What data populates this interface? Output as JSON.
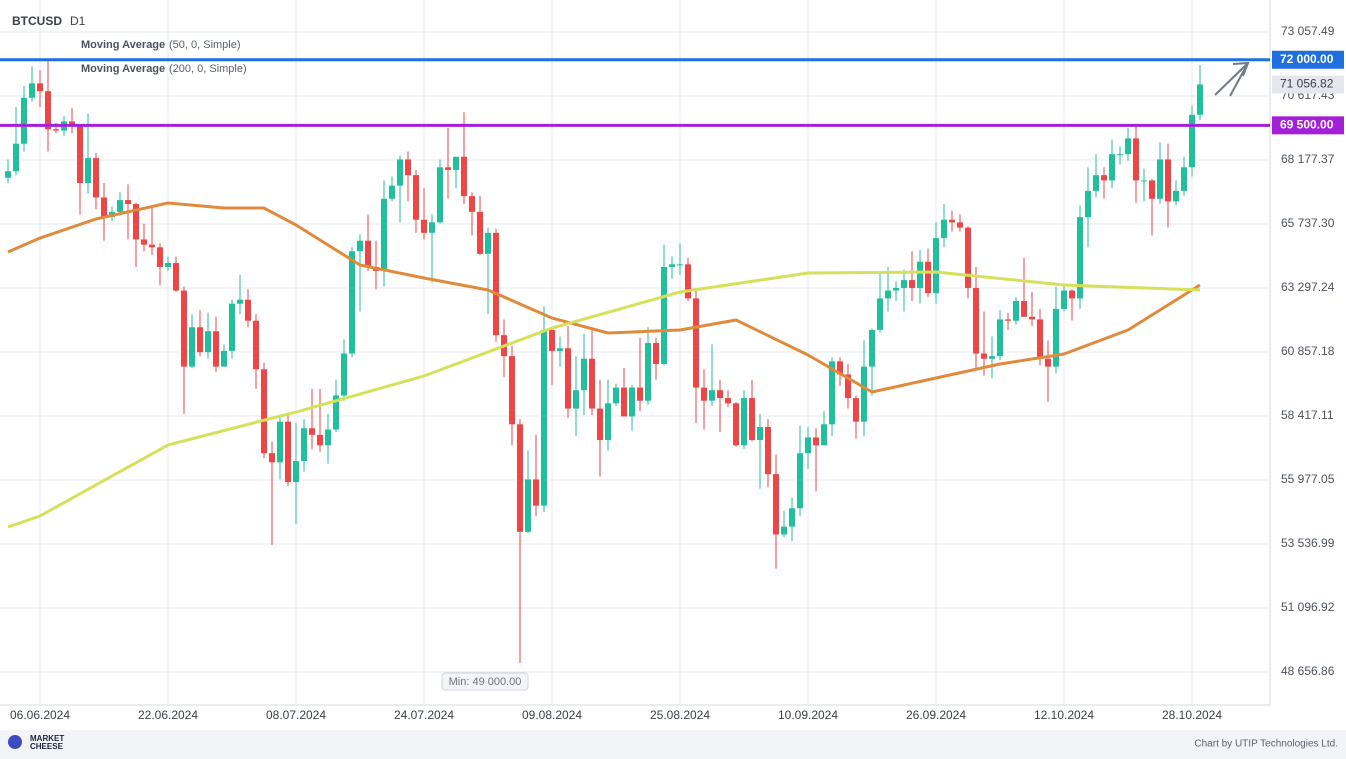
{
  "chart_data": {
    "type": "candlestick",
    "title": "BTCUSD",
    "timeframe": "D1",
    "x": [
      "02.06.2024",
      "03.06.2024",
      "04.06.2024",
      "05.06.2024",
      "06.06.2024",
      "07.06.2024",
      "08.06.2024",
      "09.06.2024",
      "10.06.2024",
      "11.06.2024",
      "12.06.2024",
      "13.06.2024",
      "14.06.2024",
      "15.06.2024",
      "16.06.2024",
      "17.06.2024",
      "18.06.2024",
      "19.06.2024",
      "20.06.2024",
      "21.06.2024",
      "22.06.2024",
      "23.06.2024",
      "24.06.2024",
      "25.06.2024",
      "26.06.2024",
      "27.06.2024",
      "28.06.2024",
      "29.06.2024",
      "30.06.2024",
      "01.07.2024",
      "02.07.2024",
      "03.07.2024",
      "04.07.2024",
      "05.07.2024",
      "06.07.2024",
      "07.07.2024",
      "08.07.2024",
      "09.07.2024",
      "10.07.2024",
      "11.07.2024",
      "12.07.2024",
      "13.07.2024",
      "14.07.2024",
      "15.07.2024",
      "16.07.2024",
      "17.07.2024",
      "18.07.2024",
      "19.07.2024",
      "20.07.2024",
      "21.07.2024",
      "22.07.2024",
      "23.07.2024",
      "24.07.2024",
      "25.07.2024",
      "26.07.2024",
      "27.07.2024",
      "28.07.2024",
      "29.07.2024",
      "30.07.2024",
      "31.07.2024",
      "01.08.2024",
      "02.08.2024",
      "03.08.2024",
      "04.08.2024",
      "05.08.2024",
      "06.08.2024",
      "07.08.2024",
      "08.08.2024",
      "09.08.2024",
      "10.08.2024",
      "11.08.2024",
      "12.08.2024",
      "13.08.2024",
      "14.08.2024",
      "15.08.2024",
      "16.08.2024",
      "17.08.2024",
      "18.08.2024",
      "19.08.2024",
      "20.08.2024",
      "21.08.2024",
      "22.08.2024",
      "23.08.2024",
      "24.08.2024",
      "25.08.2024",
      "26.08.2024",
      "27.08.2024",
      "28.08.2024",
      "29.08.2024",
      "30.08.2024",
      "31.08.2024",
      "01.09.2024",
      "02.09.2024",
      "03.09.2024",
      "04.09.2024",
      "05.09.2024",
      "06.09.2024",
      "07.09.2024",
      "08.09.2024",
      "09.09.2024",
      "10.09.2024",
      "11.09.2024",
      "12.09.2024",
      "13.09.2024",
      "14.09.2024",
      "15.09.2024",
      "16.09.2024",
      "17.09.2024",
      "18.09.2024",
      "19.09.2024",
      "20.09.2024",
      "21.09.2024",
      "22.09.2024",
      "23.09.2024",
      "24.09.2024",
      "25.09.2024",
      "26.09.2024",
      "27.09.2024",
      "28.09.2024",
      "29.09.2024",
      "30.09.2024",
      "01.10.2024",
      "02.10.2024",
      "03.10.2024",
      "04.10.2024",
      "05.10.2024",
      "06.10.2024",
      "07.10.2024",
      "08.10.2024",
      "09.10.2024",
      "10.10.2024",
      "11.10.2024",
      "12.10.2024",
      "13.10.2024",
      "14.10.2024",
      "15.10.2024",
      "16.10.2024",
      "17.10.2024",
      "18.10.2024",
      "19.10.2024",
      "20.10.2024",
      "21.10.2024",
      "22.10.2024",
      "23.10.2024",
      "24.10.2024",
      "25.10.2024",
      "26.10.2024",
      "27.10.2024",
      "28.10.2024",
      "29.10.2024"
    ],
    "open": [
      67500,
      67750,
      68800,
      70550,
      71100,
      70800,
      69350,
      69300,
      69650,
      69500,
      67300,
      68250,
      66750,
      66000,
      66200,
      66650,
      66500,
      65150,
      64950,
      64850,
      64100,
      64250,
      63200,
      60300,
      61800,
      60850,
      61650,
      60300,
      60900,
      62700,
      62850,
      62050,
      60200,
      57000,
      56650,
      58200,
      55900,
      56700,
      57950,
      57700,
      57300,
      57900,
      59200,
      60800,
      64700,
      65100,
      64100,
      63950,
      66700,
      67200,
      68200,
      67600,
      65900,
      65400,
      65800,
      67900,
      67800,
      68300,
      66800,
      66200,
      64600,
      65400,
      61500,
      60700,
      58100,
      54000,
      56000,
      55000,
      61700,
      60900,
      61000,
      58700,
      59400,
      60600,
      58700,
      57500,
      58900,
      59500,
      58400,
      59500,
      59000,
      61200,
      60400,
      64100,
      64200,
      64200,
      62900,
      59500,
      59000,
      59400,
      59100,
      58900,
      57300,
      59100,
      57500,
      58000,
      56200,
      53900,
      54200,
      54900,
      57000,
      57600,
      57300,
      58100,
      60500,
      60000,
      59100,
      58200,
      60300,
      61700,
      62900,
      63200,
      63300,
      63600,
      63300,
      64300,
      63100,
      65200,
      65900,
      65800,
      65600,
      63300,
      60800,
      60600,
      60700,
      62100,
      62050,
      62800,
      62200,
      62100,
      60600,
      60300,
      62500,
      63200,
      62900,
      66000,
      67000,
      67600,
      67400,
      68400,
      68400,
      69000,
      67400,
      67400,
      66700,
      68200,
      66600,
      67000,
      67900,
      69900
    ],
    "high": [
      68200,
      70200,
      71000,
      71750,
      71600,
      71950,
      69600,
      69850,
      70150,
      69550,
      69950,
      68450,
      67300,
      66400,
      66950,
      67250,
      66550,
      65750,
      66450,
      65000,
      64500,
      64500,
      63350,
      62300,
      62450,
      62350,
      62200,
      61150,
      62850,
      63800,
      63250,
      62300,
      60450,
      57450,
      58450,
      58500,
      58150,
      58300,
      59450,
      59450,
      58500,
      59800,
      61350,
      64850,
      65350,
      66100,
      65100,
      67400,
      67550,
      68350,
      68500,
      67800,
      67100,
      66100,
      68200,
      69400,
      68300,
      70000,
      66950,
      66800,
      65600,
      65550,
      62100,
      61100,
      58300,
      57100,
      57700,
      62600,
      61750,
      61450,
      61850,
      60700,
      61550,
      61800,
      59800,
      59800,
      59650,
      60250,
      59600,
      61400,
      61800,
      61400,
      64950,
      64500,
      65000,
      64450,
      63200,
      60200,
      61150,
      59800,
      59400,
      58950,
      59400,
      59800,
      58500,
      58300,
      56950,
      54800,
      55300,
      58050,
      58000,
      57950,
      58600,
      60650,
      60650,
      60400,
      59200,
      61300,
      61750,
      63850,
      64100,
      63550,
      64000,
      64700,
      64750,
      64800,
      65800,
      66500,
      66250,
      66100,
      65650,
      64100,
      62400,
      61450,
      62450,
      62350,
      62950,
      64450,
      63150,
      62500,
      61300,
      63350,
      63450,
      63250,
      66450,
      67900,
      68400,
      67900,
      68950,
      68700,
      69400,
      69500,
      67850,
      67450,
      68850,
      68800,
      67400,
      68300,
      70250,
      71800
    ],
    "low": [
      67300,
      67600,
      68500,
      70400,
      70200,
      68500,
      69200,
      69100,
      69200,
      66100,
      66900,
      66300,
      65100,
      65850,
      66050,
      65150,
      64100,
      64700,
      64550,
      63400,
      63950,
      63150,
      58500,
      60250,
      60700,
      60600,
      60100,
      60300,
      60600,
      62300,
      61800,
      59450,
      56800,
      53500,
      56000,
      55750,
      54300,
      56300,
      57150,
      57050,
      56600,
      57800,
      59000,
      60650,
      62400,
      63950,
      63250,
      63350,
      66600,
      65800,
      66600,
      65400,
      65150,
      63500,
      65750,
      66700,
      67100,
      66500,
      65300,
      64550,
      62300,
      61250,
      59900,
      57300,
      49000,
      53950,
      54600,
      54750,
      59600,
      60300,
      58350,
      57650,
      58450,
      58450,
      56100,
      57100,
      58800,
      58400,
      57850,
      58600,
      58850,
      59800,
      60350,
      63650,
      63800,
      62800,
      58150,
      57900,
      58800,
      57800,
      58750,
      57250,
      57150,
      57450,
      55650,
      55700,
      52600,
      53800,
      53650,
      54600,
      56400,
      55550,
      57300,
      57650,
      59550,
      58700,
      57550,
      57650,
      59200,
      61600,
      62400,
      62800,
      62400,
      62800,
      62700,
      62950,
      62700,
      64850,
      65450,
      65450,
      62900,
      60200,
      59950,
      59850,
      60550,
      61700,
      61900,
      62200,
      61850,
      60350,
      58950,
      60050,
      62400,
      62050,
      62500,
      64850,
      66750,
      66700,
      67100,
      68000,
      68150,
      66550,
      66600,
      65300,
      66500,
      65600,
      66450,
      66800,
      67550,
      69700
    ],
    "close": [
      67750,
      68800,
      70550,
      71100,
      70800,
      69350,
      69300,
      69650,
      69500,
      67300,
      68250,
      66750,
      66000,
      66200,
      66650,
      66500,
      65150,
      64950,
      64850,
      64100,
      64250,
      63200,
      60300,
      61800,
      60850,
      61650,
      60300,
      60900,
      62700,
      62850,
      62050,
      60200,
      57000,
      56650,
      58200,
      55900,
      56700,
      57950,
      57700,
      57300,
      57900,
      59200,
      60800,
      64700,
      65100,
      64100,
      63950,
      66700,
      67200,
      68200,
      67600,
      65900,
      65400,
      65800,
      67900,
      67800,
      68300,
      66800,
      66200,
      64600,
      65400,
      61500,
      60700,
      58100,
      54000,
      56000,
      55000,
      61700,
      60900,
      61000,
      58700,
      59400,
      60600,
      58700,
      57500,
      58900,
      59500,
      58400,
      59500,
      59000,
      61200,
      60400,
      64100,
      64200,
      64200,
      62900,
      59500,
      59000,
      59400,
      59100,
      58900,
      57300,
      59100,
      57500,
      58000,
      56200,
      53900,
      54200,
      54900,
      57000,
      57600,
      57300,
      58100,
      60500,
      60000,
      59100,
      58200,
      60300,
      61700,
      62900,
      63200,
      63300,
      63600,
      63300,
      64300,
      63100,
      65200,
      65900,
      65800,
      65600,
      63300,
      60800,
      60600,
      60700,
      62100,
      62050,
      62800,
      62200,
      62100,
      60600,
      60300,
      62500,
      63200,
      62900,
      66000,
      67000,
      67600,
      67400,
      68400,
      68400,
      69000,
      67400,
      67400,
      66700,
      68200,
      66600,
      67000,
      67900,
      69900,
      71056.82
    ],
    "up_color": "#22bf9c",
    "down_color": "#ee4646",
    "moving_averages": [
      {
        "name": "Moving Average",
        "params": "(50, 0, Simple)",
        "color": "#e08a3c",
        "x": [
          "02.06.2024",
          "06.06.2024",
          "13.06.2024",
          "22.06.2024",
          "29.06.2024",
          "04.07.2024",
          "08.07.2024",
          "16.07.2024",
          "24.07.2024",
          "01.08.2024",
          "09.08.2024",
          "16.08.2024",
          "25.08.2024",
          "01.09.2024",
          "10.09.2024",
          "18.09.2024",
          "26.09.2024",
          "04.10.2024",
          "12.10.2024",
          "20.10.2024",
          "29.10.2024"
        ],
        "values": [
          64669,
          65203,
          65928,
          66538,
          66347,
          66347,
          65699,
          64174,
          63679,
          63221,
          62153,
          61582,
          61696,
          62077,
          60743,
          59332,
          59866,
          60400,
          60781,
          61696,
          63411
        ]
      },
      {
        "name": "Moving Average",
        "params": "(200, 0, Simple)",
        "color": "#d6e05a",
        "x": [
          "02.06.2024",
          "06.06.2024",
          "22.06.2024",
          "08.07.2024",
          "24.07.2024",
          "09.08.2024",
          "25.08.2024",
          "10.09.2024",
          "26.09.2024",
          "12.10.2024",
          "29.10.2024"
        ],
        "values": [
          54185,
          54605,
          57311,
          58569,
          59942,
          61772,
          63144,
          63869,
          63907,
          63411,
          63221
        ]
      }
    ],
    "levels": [
      {
        "value": 72000,
        "label": "72 000.00",
        "color": "#1f6fde"
      },
      {
        "value": 69500,
        "label": "69 500.00",
        "color": "#a41fd8"
      }
    ],
    "last_price": {
      "value": 71056.82,
      "label": "71 056.82"
    },
    "annotations": [
      "Min: 49 000.00"
    ],
    "ylim": [
      47589,
      74278
    ],
    "yticks": [
      {
        "value": 73057.49,
        "label": "73 057.49"
      },
      {
        "value": 70617.43,
        "label": "70 617.43"
      },
      {
        "value": 68177.37,
        "label": "68 177.37"
      },
      {
        "value": 65737.3,
        "label": "65 737.30"
      },
      {
        "value": 63297.24,
        "label": "63 297.24"
      },
      {
        "value": 60857.18,
        "label": "60 857.18"
      },
      {
        "value": 58417.11,
        "label": "58 417.11"
      },
      {
        "value": 55977.05,
        "label": "55 977.05"
      },
      {
        "value": 53536.99,
        "label": "53 536.99"
      },
      {
        "value": 51096.92,
        "label": "51 096.92"
      },
      {
        "value": 48656.86,
        "label": "48 656.86"
      }
    ],
    "xticks": [
      "06.06.2024",
      "22.06.2024",
      "08.07.2024",
      "24.07.2024",
      "09.08.2024",
      "25.08.2024",
      "10.09.2024",
      "26.09.2024",
      "12.10.2024",
      "28.10.2024"
    ],
    "grid": true
  },
  "footer": {
    "logo": [
      "MARKET",
      "CHEESE"
    ],
    "credit": "Chart by UTIP Technologies Ltd."
  }
}
